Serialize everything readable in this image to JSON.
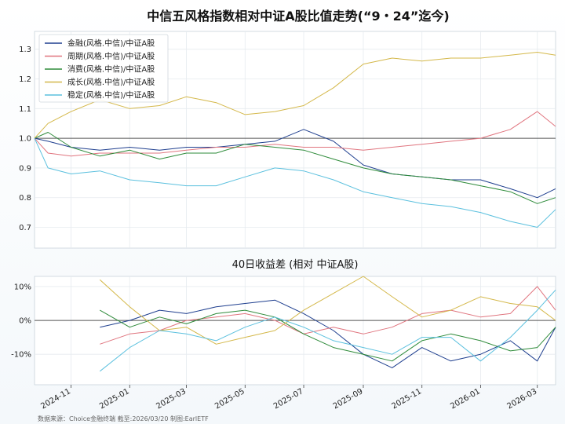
{
  "figure": {
    "footer": "数据来源：Choice金融终端 截至:2026/03/20 制图:EarlETF"
  },
  "chart_data": [
    {
      "type": "line",
      "title": "中信五风格指数相对中证A股比值走势(“9・24”迄今)",
      "xlabel": "",
      "ylabel": "",
      "x_ticks": [
        "2024-11",
        "2025-01",
        "2025-03",
        "2025-05",
        "2025-07",
        "2025-09",
        "2025-11",
        "2026-01",
        "2026-03"
      ],
      "x_range": [
        "2024-09-24",
        "2026-03-20"
      ],
      "y_ticks": [
        "0.7",
        "0.8",
        "0.9",
        "1.0",
        "1.1",
        "1.2",
        "1.3"
      ],
      "ylim": [
        0.63,
        1.36
      ],
      "reference_line": 1.0,
      "grid": true,
      "legend_position": "top-left",
      "dates": [
        "2024-09-24",
        "2024-10-08",
        "2024-11-01",
        "2024-12-01",
        "2025-01-01",
        "2025-02-01",
        "2025-03-01",
        "2025-04-01",
        "2025-05-01",
        "2025-06-01",
        "2025-07-01",
        "2025-08-01",
        "2025-09-01",
        "2025-10-01",
        "2025-11-01",
        "2025-12-01",
        "2026-01-01",
        "2026-02-01",
        "2026-03-01",
        "2026-03-20"
      ],
      "series": [
        {
          "name": "金融(风格.中信)/中证A股",
          "color": "#1f3f8f",
          "values": [
            1.0,
            0.99,
            0.97,
            0.96,
            0.97,
            0.96,
            0.97,
            0.97,
            0.98,
            0.99,
            1.03,
            0.99,
            0.91,
            0.88,
            0.87,
            0.86,
            0.86,
            0.83,
            0.8,
            0.83
          ]
        },
        {
          "name": "周期(风格.中信)/中证A股",
          "color": "#e0757f",
          "values": [
            1.0,
            0.95,
            0.94,
            0.95,
            0.95,
            0.95,
            0.96,
            0.97,
            0.97,
            0.98,
            0.97,
            0.97,
            0.96,
            0.97,
            0.98,
            0.99,
            1.0,
            1.03,
            1.09,
            1.04
          ]
        },
        {
          "name": "消费(风格.中信)/中证A股",
          "color": "#2e8b3a",
          "values": [
            1.0,
            1.02,
            0.97,
            0.94,
            0.96,
            0.93,
            0.95,
            0.95,
            0.98,
            0.97,
            0.96,
            0.93,
            0.9,
            0.88,
            0.87,
            0.86,
            0.84,
            0.82,
            0.78,
            0.8
          ]
        },
        {
          "name": "成长(风格.中信)/中证A股",
          "color": "#d4b84a",
          "values": [
            1.0,
            1.05,
            1.09,
            1.13,
            1.1,
            1.11,
            1.14,
            1.12,
            1.08,
            1.09,
            1.11,
            1.17,
            1.25,
            1.27,
            1.26,
            1.27,
            1.27,
            1.28,
            1.29,
            1.28
          ]
        },
        {
          "name": "稳定(风格.中信)/中证A股",
          "color": "#5bc0de",
          "values": [
            1.0,
            0.9,
            0.88,
            0.89,
            0.86,
            0.85,
            0.84,
            0.84,
            0.87,
            0.9,
            0.89,
            0.86,
            0.82,
            0.8,
            0.78,
            0.77,
            0.75,
            0.72,
            0.7,
            0.76
          ]
        }
      ]
    },
    {
      "type": "line",
      "title": "40日收益差 (相对 中证A股)",
      "xlabel": "",
      "ylabel": "",
      "x_ticks": [
        "2024-11",
        "2025-01",
        "2025-03",
        "2025-05",
        "2025-07",
        "2025-09",
        "2025-11",
        "2026-01",
        "2026-03"
      ],
      "y_ticks": [
        "10%",
        "0%",
        "-10%"
      ],
      "ylim": [
        -19,
        13
      ],
      "reference_line": 0,
      "grid": true,
      "dates": [
        "2024-12-01",
        "2025-01-01",
        "2025-02-01",
        "2025-03-01",
        "2025-04-01",
        "2025-05-01",
        "2025-06-01",
        "2025-07-01",
        "2025-08-01",
        "2025-09-01",
        "2025-10-01",
        "2025-11-01",
        "2025-12-01",
        "2026-01-01",
        "2026-02-01",
        "2026-03-01",
        "2026-03-20"
      ],
      "series": [
        {
          "name": "金融(风格.中信)/中证A股",
          "color": "#1f3f8f",
          "values": [
            -2,
            0,
            3,
            2,
            4,
            5,
            6,
            2,
            -3,
            -10,
            -14,
            -8,
            -12,
            -10,
            -6,
            -12,
            -2
          ]
        },
        {
          "name": "周期(风格.中信)/中证A股",
          "color": "#e0757f",
          "values": [
            -7,
            -4,
            -3,
            0,
            1,
            2,
            0,
            -4,
            -2,
            -4,
            -2,
            2,
            3,
            1,
            2,
            10,
            3
          ]
        },
        {
          "name": "消费(风格.中信)/中证A股",
          "color": "#2e8b3a",
          "values": [
            3,
            -2,
            1,
            -1,
            2,
            3,
            1,
            -4,
            -8,
            -10,
            -12,
            -6,
            -4,
            -6,
            -9,
            -8,
            -2
          ]
        },
        {
          "name": "成长(风格.中信)/中证A股",
          "color": "#d4b84a",
          "values": [
            12,
            4,
            -3,
            -2,
            -7,
            -5,
            -3,
            3,
            8,
            13,
            7,
            1,
            3,
            7,
            5,
            4,
            0
          ]
        },
        {
          "name": "稳定(风格.中信)/中证A股",
          "color": "#5bc0de",
          "values": [
            -15,
            -8,
            -3,
            -4,
            -6,
            -2,
            1,
            -2,
            -6,
            -8,
            -10,
            -5,
            -5,
            -12,
            -5,
            3,
            9
          ]
        }
      ]
    }
  ]
}
